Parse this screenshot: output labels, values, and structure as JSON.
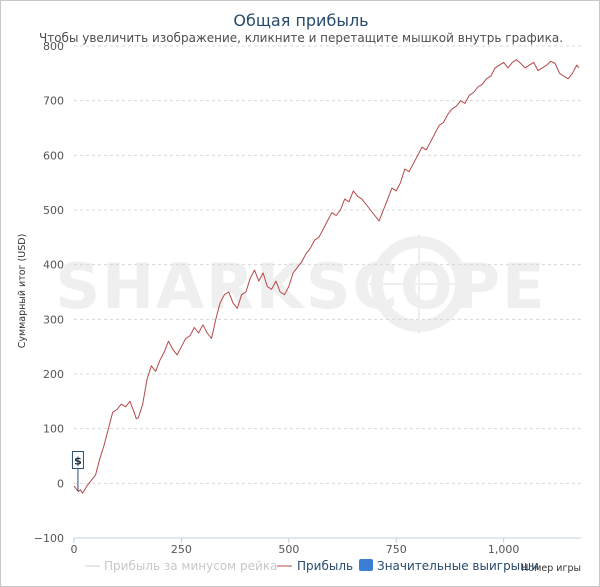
{
  "chart_data": {
    "type": "line",
    "title": "Общая прибыль",
    "subtitle": "Чтобы увеличить изображение, кликните и перетащите мышкой внутрь графика.",
    "ylabel": "Суммарный итог (USD)",
    "xlabel": "Номер игры",
    "xlim": [
      0,
      1180
    ],
    "ylim": [
      -100,
      800
    ],
    "x_ticks": [
      0,
      250,
      500,
      750,
      1000
    ],
    "x_tick_labels": [
      "0",
      "250",
      "500",
      "750",
      "1,000"
    ],
    "y_ticks": [
      -100,
      0,
      100,
      200,
      300,
      400,
      500,
      600,
      700,
      800
    ],
    "y_tick_labels": [
      "−100",
      "0",
      "100",
      "200",
      "300",
      "400",
      "500",
      "600",
      "700",
      "800"
    ],
    "grid": true,
    "legend_position": "bottom",
    "series": [
      {
        "name": "Прибыль",
        "color": "#b5484a",
        "x": [
          0,
          10,
          15,
          20,
          30,
          40,
          50,
          60,
          70,
          80,
          90,
          100,
          110,
          120,
          130,
          140,
          145,
          150,
          160,
          170,
          180,
          190,
          200,
          210,
          220,
          230,
          240,
          250,
          260,
          270,
          280,
          290,
          300,
          310,
          320,
          330,
          340,
          350,
          360,
          370,
          380,
          390,
          400,
          410,
          420,
          430,
          440,
          450,
          460,
          470,
          480,
          490,
          500,
          510,
          520,
          530,
          540,
          550,
          560,
          570,
          580,
          590,
          600,
          610,
          620,
          630,
          640,
          650,
          660,
          670,
          680,
          690,
          700,
          710,
          720,
          730,
          740,
          750,
          760,
          770,
          780,
          790,
          800,
          810,
          820,
          830,
          840,
          850,
          860,
          870,
          880,
          890,
          900,
          910,
          920,
          930,
          940,
          950,
          960,
          970,
          980,
          990,
          1000,
          1010,
          1020,
          1030,
          1040,
          1050,
          1060,
          1070,
          1080,
          1090,
          1100,
          1110,
          1120,
          1130,
          1140,
          1150,
          1160,
          1170,
          1175
        ],
        "values": [
          -5,
          -15,
          -12,
          -18,
          -5,
          5,
          15,
          45,
          70,
          100,
          130,
          135,
          145,
          140,
          150,
          130,
          118,
          120,
          145,
          190,
          215,
          205,
          225,
          240,
          260,
          245,
          235,
          250,
          265,
          270,
          285,
          275,
          290,
          275,
          265,
          300,
          330,
          345,
          350,
          330,
          320,
          345,
          350,
          375,
          390,
          370,
          385,
          360,
          355,
          370,
          350,
          345,
          360,
          385,
          395,
          405,
          420,
          430,
          445,
          450,
          465,
          480,
          495,
          490,
          500,
          520,
          515,
          535,
          525,
          520,
          510,
          500,
          490,
          480,
          500,
          520,
          540,
          535,
          550,
          575,
          570,
          585,
          600,
          615,
          610,
          625,
          640,
          655,
          660,
          675,
          685,
          690,
          700,
          695,
          710,
          715,
          725,
          730,
          740,
          745,
          760,
          765,
          770,
          760,
          770,
          775,
          768,
          760,
          765,
          770,
          755,
          760,
          765,
          772,
          768,
          750,
          745,
          740,
          750,
          765,
          760
        ]
      }
    ],
    "legend": [
      {
        "label": "Прибыль за минусом рейка",
        "color": "#d0d0d0",
        "style": "line",
        "enabled": false
      },
      {
        "label": "Прибыль",
        "color": "#b5484a",
        "style": "line",
        "enabled": true
      },
      {
        "label": "Значительные выигрыши",
        "color": "#3a7fd5",
        "style": "box",
        "enabled": true
      }
    ],
    "marker": {
      "label": "$",
      "x": 15,
      "y": -15
    }
  },
  "watermark": "SHARKSCOPE"
}
